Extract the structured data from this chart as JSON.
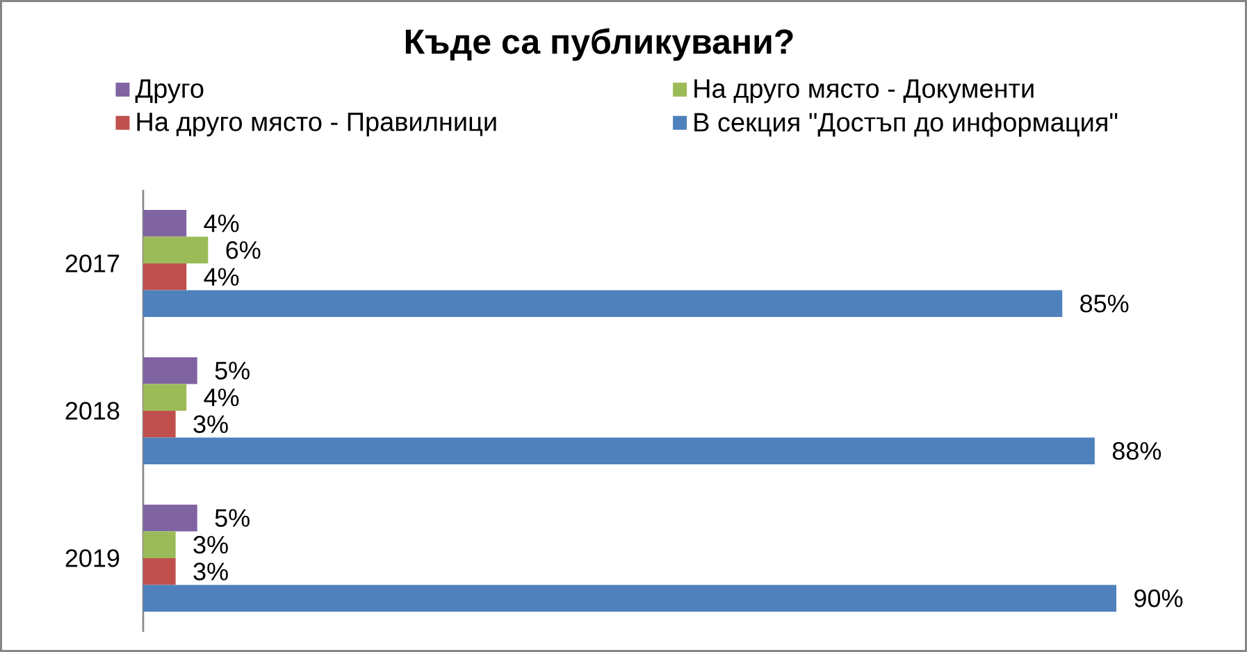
{
  "chart_data": {
    "type": "bar",
    "orientation": "horizontal",
    "title": "Къде са публикувани?",
    "categories": [
      "2017",
      "2018",
      "2019"
    ],
    "series": [
      {
        "name": "Друго",
        "color": "#8064a2",
        "values": [
          4,
          5,
          5
        ],
        "value_labels": [
          "4%",
          "5%",
          "5%"
        ]
      },
      {
        "name": "На друго място - Документи",
        "color": "#9bbb59",
        "values": [
          6,
          4,
          3
        ],
        "value_labels": [
          "6%",
          "4%",
          "3%"
        ]
      },
      {
        "name": "На друго място - Правилници",
        "color": "#c0504d",
        "values": [
          4,
          3,
          3
        ],
        "value_labels": [
          "4%",
          "3%",
          "3%"
        ]
      },
      {
        "name": "В секция \"Достъп до информация\"",
        "color": "#4f81bd",
        "values": [
          85,
          88,
          90
        ],
        "value_labels": [
          "85%",
          "88%",
          "90%"
        ]
      }
    ],
    "legend": "top",
    "tick_labels": "y"
  }
}
